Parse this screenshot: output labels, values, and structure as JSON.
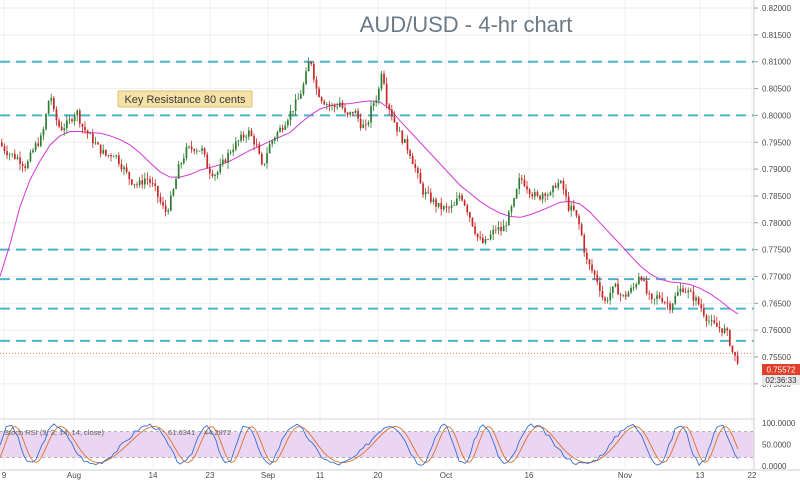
{
  "chart_data": {
    "type": "candlestick",
    "title": "AUD/USD - 4-hr chart",
    "annotation": "Key Resistance 80 cents",
    "price_axis": {
      "range": [
        0.7455,
        0.8215
      ],
      "ticks": [
        "0.82000",
        "0.81500",
        "0.81000",
        "0.80500",
        "0.80000",
        "0.79500",
        "0.79000",
        "0.78500",
        "0.78000",
        "0.77500",
        "0.77000",
        "0.76500",
        "0.76000",
        "0.75500",
        "0.75000"
      ]
    },
    "x_axis": {
      "labels": [
        "9",
        "Aug",
        "14",
        "23",
        "Sep",
        "11",
        "20",
        "Oct",
        "16",
        "Nov",
        "13",
        "22"
      ]
    },
    "horizontal_levels": [
      0.81,
      0.8,
      0.775,
      0.7695,
      0.764,
      0.758
    ],
    "last_price": {
      "value": 0.7557,
      "label": "0.75572",
      "countdown": "02:36:33"
    },
    "price_path": [
      [
        0,
        0.795
      ],
      [
        10,
        0.793
      ],
      [
        20,
        0.792
      ],
      [
        28,
        0.7905
      ],
      [
        36,
        0.794
      ],
      [
        44,
        0.796
      ],
      [
        52,
        0.8045
      ],
      [
        56,
        0.8
      ],
      [
        62,
        0.7975
      ],
      [
        70,
        0.7985
      ],
      [
        78,
        0.801
      ],
      [
        84,
        0.798
      ],
      [
        92,
        0.796
      ],
      [
        100,
        0.794
      ],
      [
        108,
        0.7925
      ],
      [
        116,
        0.793
      ],
      [
        124,
        0.7905
      ],
      [
        132,
        0.788
      ],
      [
        140,
        0.787
      ],
      [
        148,
        0.7885
      ],
      [
        156,
        0.7865
      ],
      [
        164,
        0.783
      ],
      [
        168,
        0.782
      ],
      [
        174,
        0.785
      ],
      [
        180,
        0.79
      ],
      [
        188,
        0.7935
      ],
      [
        196,
        0.794
      ],
      [
        204,
        0.7935
      ],
      [
        210,
        0.79
      ],
      [
        218,
        0.789
      ],
      [
        226,
        0.7915
      ],
      [
        234,
        0.794
      ],
      [
        242,
        0.7955
      ],
      [
        250,
        0.797
      ],
      [
        258,
        0.7945
      ],
      [
        264,
        0.79
      ],
      [
        270,
        0.794
      ],
      [
        276,
        0.796
      ],
      [
        284,
        0.798
      ],
      [
        292,
        0.8005
      ],
      [
        300,
        0.803
      ],
      [
        306,
        0.806
      ],
      [
        312,
        0.811
      ],
      [
        318,
        0.805
      ],
      [
        324,
        0.803
      ],
      [
        330,
        0.802
      ],
      [
        336,
        0.8015
      ],
      [
        342,
        0.8025
      ],
      [
        348,
        0.7995
      ],
      [
        356,
        0.801
      ],
      [
        362,
        0.7985
      ],
      [
        368,
        0.7975
      ],
      [
        374,
        0.802
      ],
      [
        380,
        0.804
      ],
      [
        384,
        0.8095
      ],
      [
        388,
        0.803
      ],
      [
        394,
        0.8
      ],
      [
        400,
        0.797
      ],
      [
        406,
        0.795
      ],
      [
        412,
        0.793
      ],
      [
        418,
        0.7895
      ],
      [
        424,
        0.786
      ],
      [
        432,
        0.7845
      ],
      [
        440,
        0.783
      ],
      [
        448,
        0.7825
      ],
      [
        456,
        0.783
      ],
      [
        462,
        0.7855
      ],
      [
        468,
        0.783
      ],
      [
        474,
        0.78
      ],
      [
        480,
        0.777
      ],
      [
        486,
        0.776
      ],
      [
        492,
        0.7775
      ],
      [
        498,
        0.779
      ],
      [
        504,
        0.7785
      ],
      [
        510,
        0.781
      ],
      [
        516,
        0.784
      ],
      [
        522,
        0.7885
      ],
      [
        528,
        0.787
      ],
      [
        534,
        0.7855
      ],
      [
        540,
        0.7845
      ],
      [
        546,
        0.786
      ],
      [
        552,
        0.785
      ],
      [
        558,
        0.7875
      ],
      [
        564,
        0.787
      ],
      [
        570,
        0.783
      ],
      [
        576,
        0.782
      ],
      [
        582,
        0.779
      ],
      [
        588,
        0.773
      ],
      [
        594,
        0.771
      ],
      [
        600,
        0.769
      ],
      [
        606,
        0.765
      ],
      [
        612,
        0.767
      ],
      [
        618,
        0.768
      ],
      [
        624,
        0.766
      ],
      [
        630,
        0.767
      ],
      [
        636,
        0.768
      ],
      [
        642,
        0.771
      ],
      [
        648,
        0.767
      ],
      [
        654,
        0.765
      ],
      [
        660,
        0.7665
      ],
      [
        666,
        0.7655
      ],
      [
        672,
        0.7645
      ],
      [
        678,
        0.7665
      ],
      [
        684,
        0.768
      ],
      [
        690,
        0.767
      ],
      [
        696,
        0.766
      ],
      [
        702,
        0.7645
      ],
      [
        708,
        0.7625
      ],
      [
        714,
        0.761
      ],
      [
        720,
        0.7605
      ],
      [
        726,
        0.76
      ],
      [
        730,
        0.759
      ],
      [
        734,
        0.756
      ],
      [
        738,
        0.7545
      ]
    ],
    "moving_average": [
      [
        0,
        0.77
      ],
      [
        10,
        0.776
      ],
      [
        20,
        0.783
      ],
      [
        30,
        0.788
      ],
      [
        40,
        0.7915
      ],
      [
        50,
        0.7945
      ],
      [
        60,
        0.7962
      ],
      [
        70,
        0.797
      ],
      [
        80,
        0.797
      ],
      [
        90,
        0.7968
      ],
      [
        100,
        0.7967
      ],
      [
        110,
        0.7962
      ],
      [
        120,
        0.7955
      ],
      [
        130,
        0.7945
      ],
      [
        140,
        0.793
      ],
      [
        150,
        0.7912
      ],
      [
        160,
        0.7895
      ],
      [
        170,
        0.7885
      ],
      [
        180,
        0.7885
      ],
      [
        190,
        0.789
      ],
      [
        200,
        0.7898
      ],
      [
        210,
        0.7903
      ],
      [
        220,
        0.7908
      ],
      [
        230,
        0.7915
      ],
      [
        240,
        0.7925
      ],
      [
        250,
        0.7935
      ],
      [
        260,
        0.7943
      ],
      [
        270,
        0.7952
      ],
      [
        280,
        0.796
      ],
      [
        290,
        0.7968
      ],
      [
        300,
        0.7985
      ],
      [
        310,
        0.8
      ],
      [
        320,
        0.8012
      ],
      [
        330,
        0.8018
      ],
      [
        340,
        0.8021
      ],
      [
        350,
        0.8022
      ],
      [
        360,
        0.8025
      ],
      [
        370,
        0.8027
      ],
      [
        380,
        0.8025
      ],
      [
        390,
        0.8012
      ],
      [
        400,
        0.799
      ],
      [
        410,
        0.797
      ],
      [
        420,
        0.795
      ],
      [
        430,
        0.793
      ],
      [
        440,
        0.791
      ],
      [
        450,
        0.789
      ],
      [
        460,
        0.787
      ],
      [
        470,
        0.7855
      ],
      [
        480,
        0.784
      ],
      [
        490,
        0.7828
      ],
      [
        500,
        0.7818
      ],
      [
        510,
        0.7812
      ],
      [
        520,
        0.781
      ],
      [
        530,
        0.7815
      ],
      [
        540,
        0.7822
      ],
      [
        550,
        0.783
      ],
      [
        560,
        0.7838
      ],
      [
        570,
        0.784
      ],
      [
        580,
        0.7835
      ],
      [
        590,
        0.782
      ],
      [
        600,
        0.78
      ],
      [
        610,
        0.778
      ],
      [
        620,
        0.776
      ],
      [
        630,
        0.774
      ],
      [
        640,
        0.772
      ],
      [
        650,
        0.7705
      ],
      [
        660,
        0.7695
      ],
      [
        670,
        0.769
      ],
      [
        680,
        0.7688
      ],
      [
        690,
        0.7685
      ],
      [
        700,
        0.7678
      ],
      [
        710,
        0.7668
      ],
      [
        720,
        0.7655
      ],
      [
        730,
        0.764
      ],
      [
        738,
        0.763
      ]
    ],
    "oscillator": {
      "label": "Stoch RSI (3, 3, 14, 14, close)",
      "value_1": "61.6341",
      "value_2": "44.2872",
      "range": [
        0,
        100
      ],
      "ticks": [
        "100.0000",
        "50.0000",
        "0.0000"
      ],
      "bands": [
        80,
        20
      ]
    }
  },
  "colors": {
    "bull": "#2e7d32",
    "bear": "#c62828",
    "level_line": "#4fb3cf",
    "ma": "#d63ad6",
    "stoch_k": "#3a6fd1",
    "stoch_d": "#e0702a",
    "osc_band": "#ead5f2",
    "annotation_bg": "#f5e2a6",
    "price_tag": "#e0402a",
    "title": "#6b7a86"
  }
}
